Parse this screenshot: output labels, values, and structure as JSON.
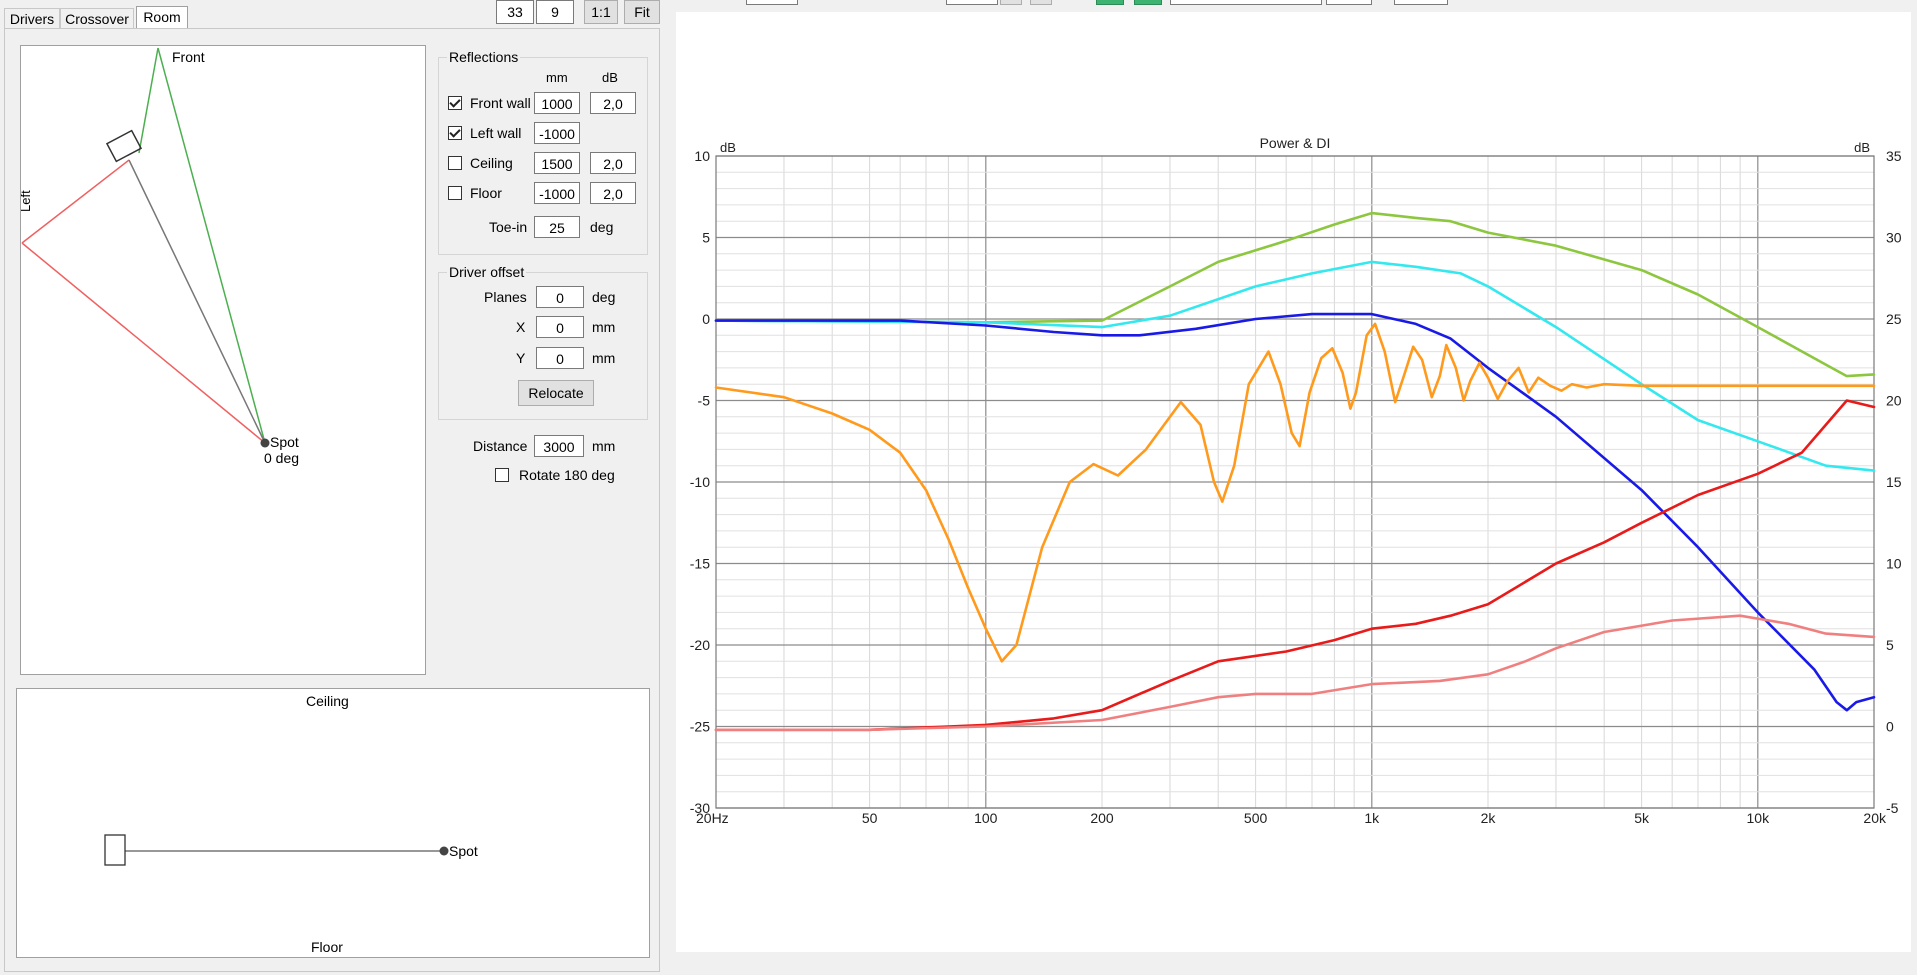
{
  "tabs": [
    {
      "label": "Drivers"
    },
    {
      "label": "Crossover"
    },
    {
      "label": "Room"
    }
  ],
  "toolbar": {
    "zoom_a": "33",
    "zoom_b": "9",
    "one_to_one": "1:1",
    "fit": "Fit"
  },
  "top_view": {
    "front_label": "Front",
    "left_label": "Left",
    "spot_label": "Spot",
    "spot_angle": "0 deg"
  },
  "reflections": {
    "title": "Reflections",
    "col_mm": "mm",
    "col_db": "dB",
    "rows": [
      {
        "label": "Front wall",
        "checked": true,
        "mm": "1000",
        "db": "2,0"
      },
      {
        "label": "Left wall",
        "checked": true,
        "mm": "-1000",
        "db": ""
      },
      {
        "label": "Ceiling",
        "checked": false,
        "mm": "1500",
        "db": "2,0"
      },
      {
        "label": "Floor",
        "checked": false,
        "mm": "-1000",
        "db": "2,0"
      }
    ],
    "toe_in_label": "Toe-in",
    "toe_in_value": "25",
    "toe_in_unit": "deg"
  },
  "driver_offset": {
    "title": "Driver offset",
    "planes_label": "Planes",
    "planes_value": "0",
    "planes_unit": "deg",
    "x_label": "X",
    "x_value": "0",
    "x_unit": "mm",
    "y_label": "Y",
    "y_value": "0",
    "y_unit": "mm",
    "relocate": "Relocate"
  },
  "distance": {
    "label": "Distance",
    "value": "3000",
    "unit": "mm"
  },
  "rotate": {
    "label": "Rotate 180 deg",
    "checked": false
  },
  "side_view": {
    "ceiling_label": "Ceiling",
    "floor_label": "Floor",
    "spot_label": "Spot"
  },
  "chart_data": {
    "type": "line",
    "title": "Power & DI",
    "y_left_unit": "dB",
    "y_right_unit": "dB",
    "x_scale": "log",
    "xlim": [
      20,
      20000
    ],
    "ylim_left": [
      -30,
      10
    ],
    "ylim_right": [
      -5,
      35
    ],
    "x_ticks": [
      {
        "v": 20,
        "label": "20Hz"
      },
      {
        "v": 50,
        "label": "50"
      },
      {
        "v": 100,
        "label": "100"
      },
      {
        "v": 200,
        "label": "200"
      },
      {
        "v": 500,
        "label": "500"
      },
      {
        "v": 1000,
        "label": "1k"
      },
      {
        "v": 2000,
        "label": "2k"
      },
      {
        "v": 5000,
        "label": "5k"
      },
      {
        "v": 10000,
        "label": "10k"
      },
      {
        "v": 20000,
        "label": "20k"
      }
    ],
    "y_left_ticks": [
      "10",
      "5",
      "0",
      "-5",
      "-10",
      "-15",
      "-20",
      "-25",
      "-30"
    ],
    "y_right_ticks": [
      "35",
      "30",
      "25",
      "20",
      "15",
      "10",
      "5",
      "0",
      "-5"
    ],
    "grid": true,
    "series": [
      {
        "color": "#8dc63f",
        "axis": "left",
        "points": [
          [
            20,
            -0.1
          ],
          [
            100,
            -0.2
          ],
          [
            200,
            -0.1
          ],
          [
            300,
            2
          ],
          [
            400,
            3.5
          ],
          [
            600,
            4.8
          ],
          [
            800,
            5.8
          ],
          [
            1000,
            6.5
          ],
          [
            1300,
            6.2
          ],
          [
            1600,
            6
          ],
          [
            2000,
            5.3
          ],
          [
            3000,
            4.5
          ],
          [
            5000,
            3
          ],
          [
            7000,
            1.5
          ],
          [
            10000,
            -0.5
          ],
          [
            15000,
            -2.8
          ],
          [
            17000,
            -3.5
          ],
          [
            20000,
            -3.4
          ]
        ]
      },
      {
        "color": "#33e8ee",
        "axis": "left",
        "points": [
          [
            20,
            -0.1
          ],
          [
            100,
            -0.2
          ],
          [
            200,
            -0.5
          ],
          [
            300,
            0.2
          ],
          [
            500,
            2
          ],
          [
            700,
            2.8
          ],
          [
            1000,
            3.5
          ],
          [
            1300,
            3.2
          ],
          [
            1700,
            2.8
          ],
          [
            2000,
            2
          ],
          [
            3000,
            -0.5
          ],
          [
            5000,
            -4
          ],
          [
            7000,
            -6.2
          ],
          [
            10000,
            -7.5
          ],
          [
            15000,
            -9
          ],
          [
            20000,
            -9.3
          ]
        ]
      },
      {
        "color": "#1a1ae6",
        "axis": "left",
        "points": [
          [
            20,
            -0.1
          ],
          [
            60,
            -0.1
          ],
          [
            100,
            -0.4
          ],
          [
            150,
            -0.8
          ],
          [
            200,
            -1
          ],
          [
            250,
            -1
          ],
          [
            350,
            -0.6
          ],
          [
            500,
            0
          ],
          [
            700,
            0.3
          ],
          [
            1000,
            0.3
          ],
          [
            1300,
            -0.3
          ],
          [
            1600,
            -1.2
          ],
          [
            2000,
            -3
          ],
          [
            3000,
            -6
          ],
          [
            5000,
            -10.5
          ],
          [
            7000,
            -14
          ],
          [
            10000,
            -18
          ],
          [
            14000,
            -21.5
          ],
          [
            16000,
            -23.5
          ],
          [
            17000,
            -24
          ],
          [
            18000,
            -23.5
          ],
          [
            20000,
            -23.2
          ]
        ]
      },
      {
        "color": "#ff9a1c",
        "axis": "left",
        "points": [
          [
            20,
            -4.2
          ],
          [
            30,
            -4.8
          ],
          [
            40,
            -5.8
          ],
          [
            50,
            -6.8
          ],
          [
            60,
            -8.2
          ],
          [
            70,
            -10.5
          ],
          [
            80,
            -13.5
          ],
          [
            90,
            -16.5
          ],
          [
            100,
            -19
          ],
          [
            110,
            -21
          ],
          [
            120,
            -20
          ],
          [
            140,
            -14
          ],
          [
            165,
            -10
          ],
          [
            190,
            -8.9
          ],
          [
            220,
            -9.6
          ],
          [
            260,
            -8
          ],
          [
            320,
            -5.1
          ],
          [
            360,
            -6.5
          ],
          [
            390,
            -10
          ],
          [
            410,
            -11.2
          ],
          [
            440,
            -9
          ],
          [
            480,
            -4
          ],
          [
            540,
            -2
          ],
          [
            580,
            -4
          ],
          [
            620,
            -7
          ],
          [
            650,
            -7.8
          ],
          [
            690,
            -4.5
          ],
          [
            740,
            -2.4
          ],
          [
            790,
            -1.8
          ],
          [
            840,
            -3.3
          ],
          [
            880,
            -5.5
          ],
          [
            910,
            -4.5
          ],
          [
            970,
            -1
          ],
          [
            1020,
            -0.3
          ],
          [
            1080,
            -2
          ],
          [
            1150,
            -5.1
          ],
          [
            1210,
            -3.5
          ],
          [
            1280,
            -1.7
          ],
          [
            1350,
            -2.5
          ],
          [
            1430,
            -4.8
          ],
          [
            1500,
            -3.5
          ],
          [
            1560,
            -1.6
          ],
          [
            1650,
            -3
          ],
          [
            1730,
            -5
          ],
          [
            1800,
            -3.8
          ],
          [
            1900,
            -2.7
          ],
          [
            2000,
            -3.6
          ],
          [
            2120,
            -4.9
          ],
          [
            2250,
            -3.8
          ],
          [
            2400,
            -3
          ],
          [
            2550,
            -4.5
          ],
          [
            2700,
            -3.6
          ],
          [
            2900,
            -4.1
          ],
          [
            3100,
            -4.4
          ],
          [
            3300,
            -4
          ],
          [
            3600,
            -4.2
          ],
          [
            4000,
            -4
          ],
          [
            5000,
            -4.1
          ],
          [
            7000,
            -4.1
          ],
          [
            10000,
            -4.1
          ],
          [
            20000,
            -4.1
          ]
        ]
      },
      {
        "color": "#e81a1a",
        "axis": "right",
        "points": [
          [
            20,
            -0.2
          ],
          [
            50,
            -0.2
          ],
          [
            80,
            0
          ],
          [
            100,
            0.1
          ],
          [
            150,
            0.5
          ],
          [
            200,
            1
          ],
          [
            300,
            2.8
          ],
          [
            400,
            4
          ],
          [
            600,
            4.6
          ],
          [
            800,
            5.3
          ],
          [
            1000,
            6
          ],
          [
            1300,
            6.3
          ],
          [
            1600,
            6.8
          ],
          [
            2000,
            7.5
          ],
          [
            3000,
            10
          ],
          [
            4000,
            11.3
          ],
          [
            5000,
            12.5
          ],
          [
            7000,
            14.2
          ],
          [
            10000,
            15.5
          ],
          [
            13000,
            16.8
          ],
          [
            15000,
            18.5
          ],
          [
            17000,
            20
          ],
          [
            20000,
            19.6
          ]
        ]
      },
      {
        "color": "#f08080",
        "axis": "right",
        "points": [
          [
            20,
            -0.2
          ],
          [
            50,
            -0.2
          ],
          [
            100,
            0
          ],
          [
            200,
            0.4
          ],
          [
            300,
            1.2
          ],
          [
            400,
            1.8
          ],
          [
            500,
            2
          ],
          [
            700,
            2
          ],
          [
            1000,
            2.6
          ],
          [
            1500,
            2.8
          ],
          [
            2000,
            3.2
          ],
          [
            2500,
            4
          ],
          [
            3000,
            4.8
          ],
          [
            4000,
            5.8
          ],
          [
            6000,
            6.5
          ],
          [
            9000,
            6.8
          ],
          [
            12000,
            6.3
          ],
          [
            15000,
            5.7
          ],
          [
            20000,
            5.5
          ]
        ]
      }
    ]
  }
}
